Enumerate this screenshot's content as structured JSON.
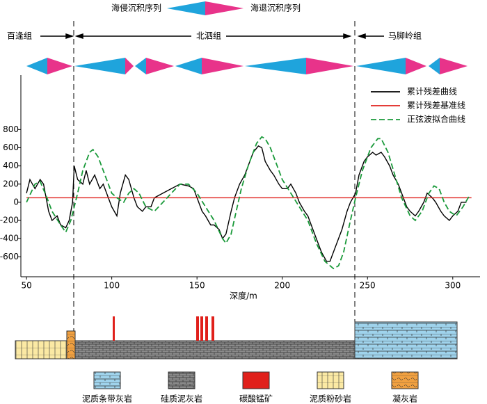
{
  "sequence_legend": {
    "transgression": "海侵沉积序列",
    "regression": "海退沉积序列"
  },
  "formations": [
    "百逢组",
    "北泗组",
    "马脚岭组"
  ],
  "chart_data": {
    "type": "line",
    "x_label": "深度/m",
    "xlim": [
      46.7,
      316
    ],
    "ylim": [
      -820,
      1400
    ],
    "xticks": [
      50,
      100,
      150,
      200,
      250,
      300
    ],
    "yticks": [
      -600,
      -400,
      -200,
      0,
      200,
      400,
      600,
      800
    ],
    "series": [
      {
        "name": "累计残差曲线",
        "color": "#000000",
        "style": "solid",
        "x": [
          50,
          52,
          55,
          58,
          60,
          63,
          65,
          68,
          70,
          73,
          75,
          77,
          78,
          80,
          83,
          85,
          87,
          90,
          93,
          95,
          98,
          100,
          103,
          105,
          108,
          110,
          113,
          115,
          118,
          120,
          123,
          125,
          130,
          135,
          140,
          145,
          148,
          150,
          153,
          155,
          158,
          160,
          163,
          165,
          167,
          170,
          172,
          175,
          178,
          180,
          183,
          186,
          188,
          190,
          193,
          195,
          198,
          200,
          203,
          205,
          208,
          210,
          213,
          215,
          218,
          220,
          223,
          226,
          228,
          230,
          232,
          235,
          238,
          240,
          243,
          245,
          248,
          250,
          253,
          255,
          258,
          260,
          263,
          265,
          268,
          270,
          273,
          275,
          278,
          280,
          283,
          285,
          288,
          290,
          293,
          295,
          298,
          300,
          303,
          305,
          308
        ],
        "values": [
          100,
          250,
          150,
          250,
          200,
          -100,
          -200,
          -150,
          -250,
          -280,
          -200,
          0,
          400,
          250,
          200,
          350,
          200,
          300,
          150,
          200,
          50,
          -50,
          -150,
          100,
          300,
          250,
          50,
          -50,
          -100,
          -50,
          -50,
          50,
          100,
          150,
          200,
          180,
          150,
          50,
          -100,
          -150,
          -250,
          -250,
          -300,
          -400,
          -350,
          -100,
          50,
          200,
          300,
          400,
          550,
          620,
          600,
          450,
          350,
          300,
          200,
          150,
          150,
          200,
          100,
          0,
          -100,
          -150,
          -300,
          -400,
          -550,
          -650,
          -650,
          -550,
          -450,
          -300,
          -100,
          0,
          100,
          300,
          450,
          500,
          550,
          520,
          550,
          500,
          400,
          300,
          200,
          100,
          -50,
          -100,
          -150,
          -100,
          0,
          100,
          50,
          0,
          -100,
          -150,
          -200,
          -150,
          -100,
          0,
          0
        ]
      },
      {
        "name": "累计残差基准线",
        "color": "#e0201b",
        "style": "solid",
        "x": [
          50,
          311
        ],
        "values": [
          50,
          50
        ]
      },
      {
        "name": "正弦波拟合曲线",
        "color": "#1a9a3a",
        "style": "dashed",
        "x": [
          50,
          55,
          58,
          62,
          65,
          70,
          73,
          76,
          80,
          83,
          87,
          89,
          92,
          95,
          100,
          103,
          107,
          110,
          113,
          116,
          120,
          125,
          130,
          135,
          140,
          145,
          150,
          155,
          160,
          165,
          167,
          170,
          173,
          176,
          180,
          185,
          188,
          190,
          193,
          197,
          200,
          205,
          210,
          215,
          220,
          225,
          230,
          233,
          236,
          240,
          243,
          247,
          252,
          256,
          258,
          262,
          266,
          270,
          275,
          278,
          282,
          286,
          289,
          292,
          295,
          298,
          302,
          306,
          310
        ],
        "values": [
          0,
          200,
          230,
          50,
          -100,
          -250,
          -330,
          -200,
          100,
          350,
          550,
          580,
          500,
          350,
          100,
          50,
          0,
          100,
          150,
          100,
          -50,
          -100,
          0,
          100,
          200,
          200,
          100,
          -50,
          -200,
          -400,
          -450,
          -350,
          -100,
          150,
          400,
          650,
          720,
          700,
          600,
          400,
          250,
          100,
          -50,
          -200,
          -450,
          -650,
          -730,
          -700,
          -550,
          -200,
          50,
          350,
          600,
          700,
          700,
          550,
          300,
          50,
          -150,
          -200,
          -100,
          100,
          180,
          150,
          0,
          -100,
          -150,
          -50,
          80
        ]
      }
    ]
  },
  "lithology_legend": [
    "泥质条带灰岩",
    "硅质泥灰岩",
    "碳酸锰矿",
    "泥质粉砂岩",
    "凝灰岩"
  ]
}
